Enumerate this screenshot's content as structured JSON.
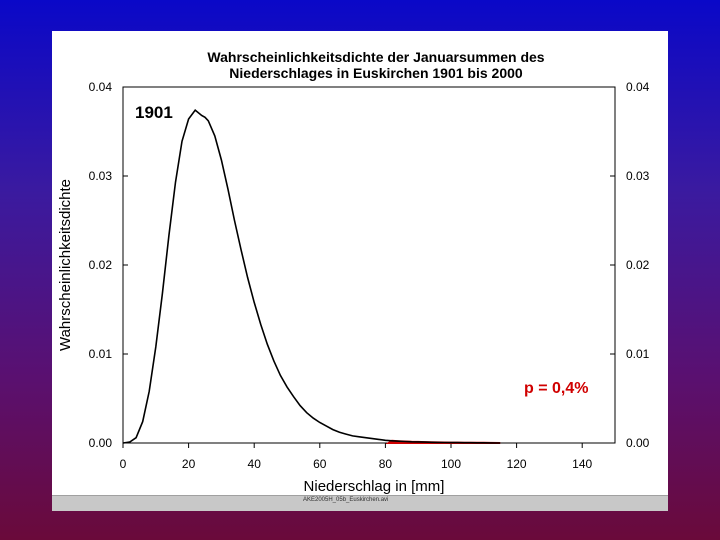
{
  "chart_data": {
    "type": "line",
    "title_line1": "Wahrscheinlichkeitsdichte der Januarsummen des",
    "title_line2": "Niederschlages  in Euskirchen 1901 bis 2000",
    "xlabel": "Niederschlag in [mm]",
    "ylabel": "Wahrscheinlichkeitsdichte",
    "xlim": [
      0,
      150
    ],
    "ylim": [
      0,
      0.04
    ],
    "x_ticks": [
      "0",
      "20",
      "40",
      "60",
      "80",
      "100",
      "120",
      "140"
    ],
    "y_ticks": [
      "0.00",
      "0.01",
      "0.02",
      "0.03",
      "0.04"
    ],
    "annotation_year": "1901",
    "annotation_p": "p = 0,4%",
    "exceedance_threshold": 81,
    "grid": false,
    "colors": {
      "curve": "#000000",
      "shade": "#d00000",
      "annotation_p": "#d00000"
    },
    "series": [
      {
        "x": [
          0,
          2,
          4,
          6,
          8,
          10,
          12,
          14,
          16,
          18,
          20,
          22,
          24,
          25,
          26,
          28,
          30,
          32,
          34,
          36,
          38,
          40,
          42,
          44,
          46,
          48,
          50,
          52,
          54,
          56,
          58,
          60,
          62,
          64,
          66,
          68,
          70,
          72,
          74,
          76,
          78,
          80,
          82,
          84,
          86,
          88,
          90,
          92,
          94,
          96,
          98,
          100,
          102,
          104,
          106,
          108,
          110,
          112,
          115
        ],
        "values": [
          0.0,
          0.0001,
          0.0006,
          0.0024,
          0.0058,
          0.0108,
          0.0168,
          0.0233,
          0.0293,
          0.0339,
          0.0364,
          0.0374,
          0.0368,
          0.0366,
          0.0362,
          0.0345,
          0.0318,
          0.0285,
          0.025,
          0.0217,
          0.0186,
          0.0158,
          0.0133,
          0.0111,
          0.0092,
          0.0076,
          0.0063,
          0.0052,
          0.0042,
          0.0034,
          0.0028,
          0.0023,
          0.0019,
          0.0015,
          0.0012,
          0.001,
          0.0008,
          0.0007,
          0.0006,
          0.0005,
          0.0004,
          0.0003,
          0.00025,
          0.0002,
          0.00017,
          0.00014,
          0.00012,
          0.0001,
          8e-05,
          7e-05,
          6e-05,
          5e-05,
          4e-05,
          3e-05,
          3e-05,
          2e-05,
          2e-05,
          1e-05,
          0.0
        ]
      }
    ]
  },
  "footer": {
    "filename": "AKE2005H_05b_Euskirchen.avi"
  }
}
